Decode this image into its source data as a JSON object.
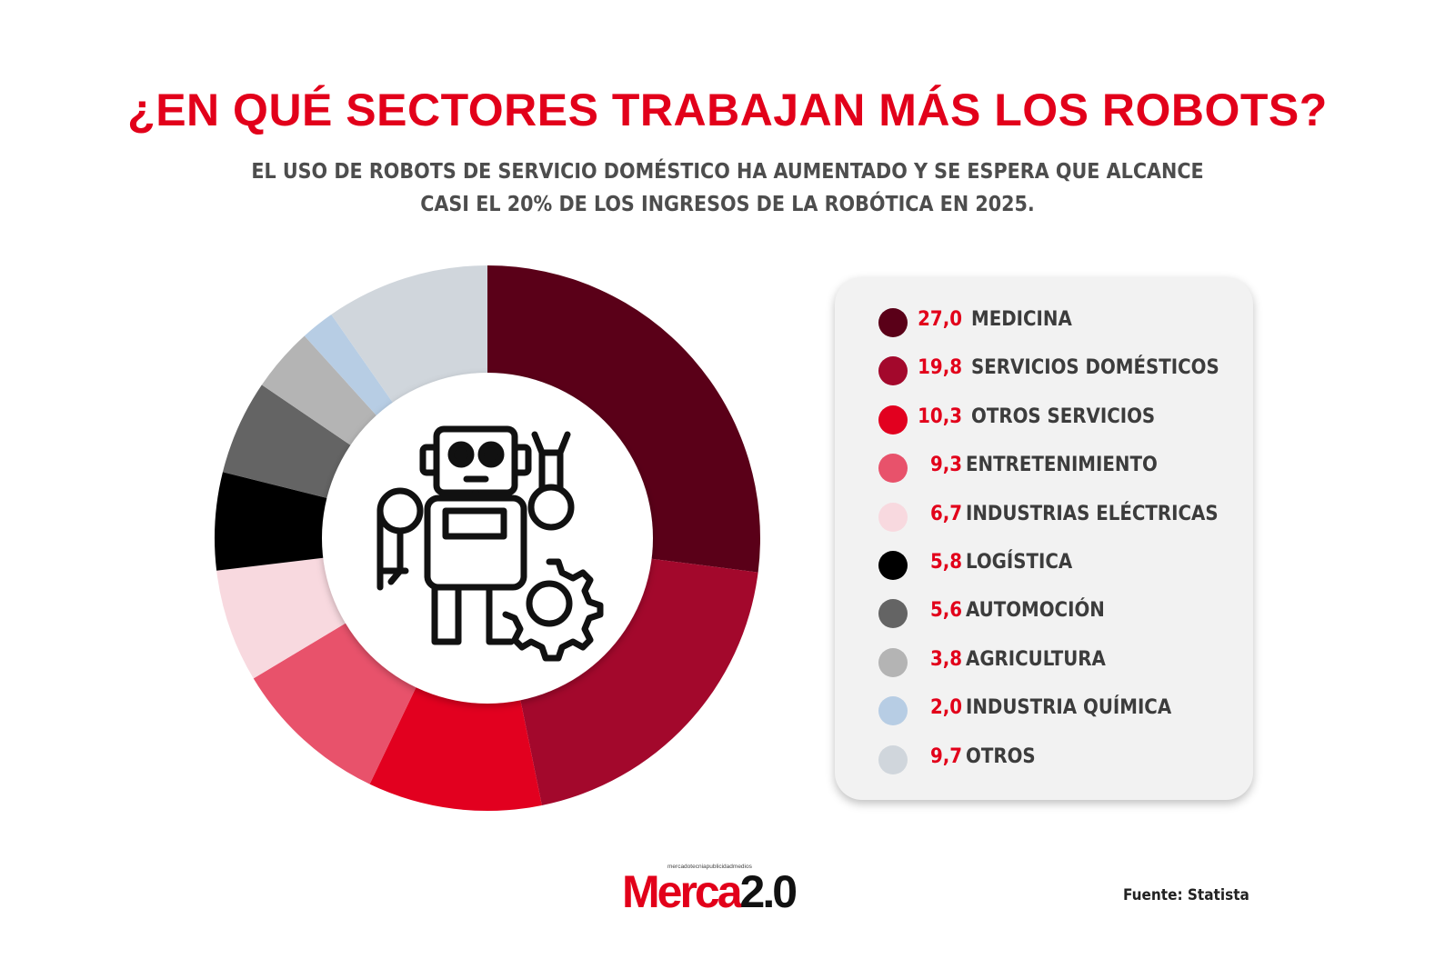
{
  "title": "¿EN QUÉ SECTORES TRABAJAN MÁS LOS ROBOTS?",
  "subtitle_line1": "EL USO DE ROBOTS DE SERVICIO DOMÉSTICO HA AUMENTADO Y SE ESPERA QUE ALCANCE",
  "subtitle_line2": "CASI EL 20% DE LOS INGRESOS DE LA ROBÓTICA EN 2025.",
  "center_icon": "robot-with-gear-icon",
  "chart_data": {
    "type": "pie",
    "donut": true,
    "legend_position": "right",
    "categories": [
      "MEDICINA",
      "SERVICIOS DOMÉSTICOS",
      "OTROS SERVICIOS",
      "ENTRETENIMIENTO",
      "INDUSTRIAS ELÉCTRICAS",
      "LOGÍSTICA",
      "AUTOMOCIÓN",
      "AGRICULTURA",
      "INDUSTRIA QUÍMICA",
      "OTROS"
    ],
    "values": [
      27.0,
      19.8,
      10.3,
      9.3,
      6.7,
      5.8,
      5.6,
      3.8,
      2.0,
      9.7
    ],
    "value_labels": [
      "27,0",
      "19,8",
      "10,3",
      "9,3",
      "6,7",
      "5,8",
      "5,6",
      "3,8",
      "2,0",
      "9,7"
    ],
    "colors": [
      "#5a0018",
      "#a3082c",
      "#e2001f",
      "#e8526b",
      "#f8d9df",
      "#000000",
      "#646464",
      "#b4b4b4",
      "#b7cde4",
      "#d0d6dc"
    ]
  },
  "logo": {
    "tagline": "mercadotecniapublicidadmedios",
    "word_red": "Merca",
    "word_black": "2.0"
  },
  "source": "Fuente: Statista"
}
